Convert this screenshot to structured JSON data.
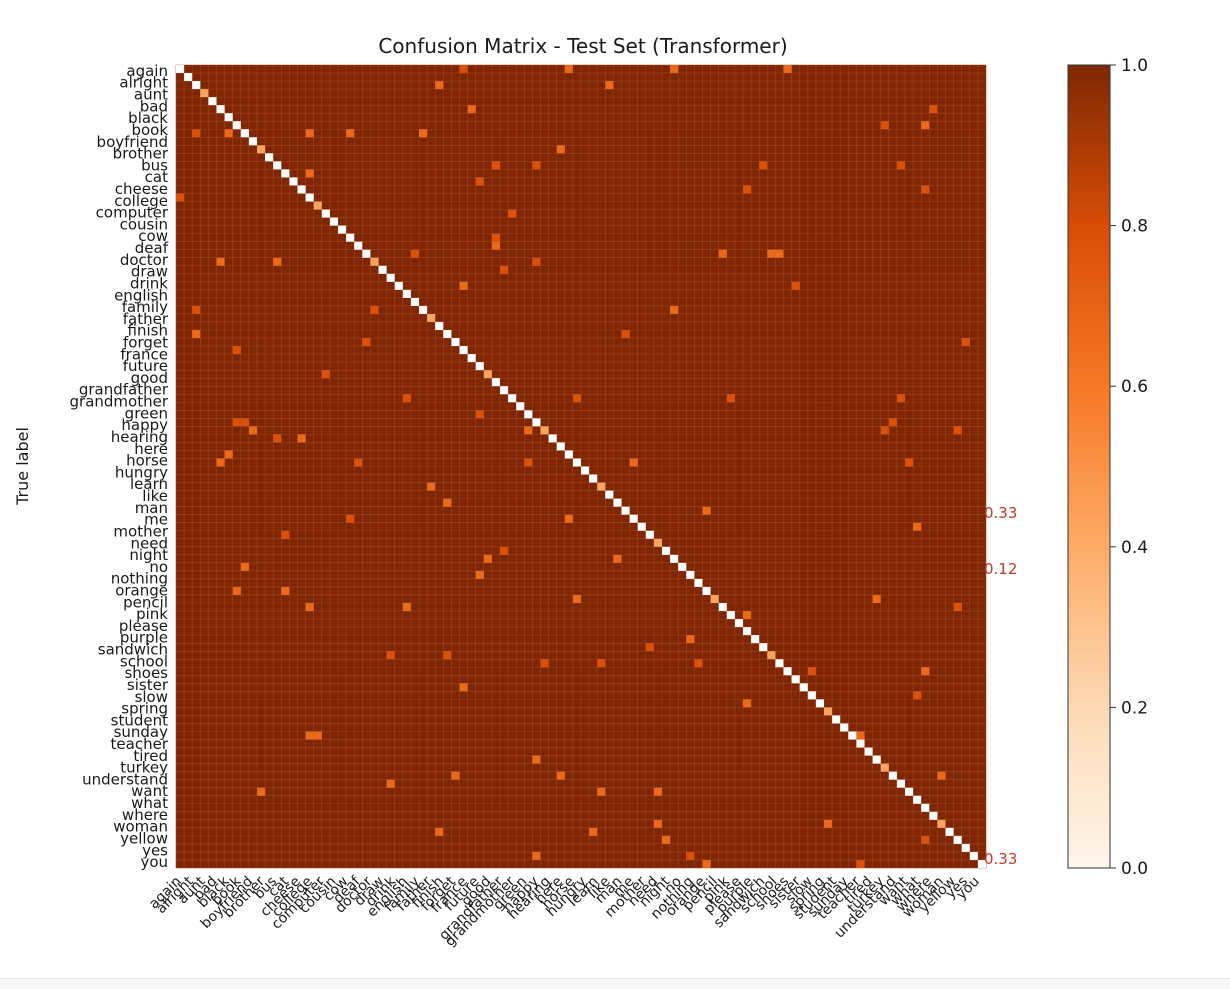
{
  "chart_data": {
    "type": "heatmap",
    "title": "Confusion Matrix - Test Set (Transformer)",
    "ylabel": "True label",
    "xlabel": "",
    "matrix_size": 100,
    "axis_labels_visible": [
      "again",
      "alright",
      "aunt",
      "bad",
      "black",
      "book",
      "boyfriend",
      "brother",
      "bus",
      "cat",
      "cheese",
      "college",
      "computer",
      "cousin",
      "cow",
      "deaf",
      "doctor",
      "draw",
      "drink",
      "english",
      "family",
      "father",
      "finish",
      "forget",
      "france",
      "future",
      "good",
      "grandfather",
      "grandmother",
      "green",
      "happy",
      "hearing",
      "here",
      "horse",
      "hungry",
      "learn",
      "like",
      "man",
      "me",
      "mother",
      "need",
      "night",
      "no",
      "nothing",
      "orange",
      "pencil",
      "pink",
      "please",
      "purple",
      "sandwich",
      "school",
      "shoes",
      "sister",
      "slow",
      "spring",
      "student",
      "sunday",
      "teacher",
      "tired",
      "turkey",
      "understand",
      "want",
      "what",
      "where",
      "woman",
      "yellow",
      "yes",
      "you"
    ],
    "colorbar": {
      "colormap": "Oranges",
      "vmin": 0.0,
      "vmax": 1.0,
      "ticks": [
        "0.0",
        "0.2",
        "0.4",
        "0.6",
        "0.8",
        "1.0"
      ]
    },
    "annotations": [
      "0.33",
      "0.33",
      "0.12"
    ],
    "note_on_values": "Dense 100x100 matrix; diagonal near 1.0, most off-diagonal cells near 0 with a few small values"
  },
  "colors": {
    "background_cell": "#7f2704",
    "diagonal": "#ffffff",
    "text_dark": "#1a1a1a",
    "annotation_text": "#c0392b"
  }
}
